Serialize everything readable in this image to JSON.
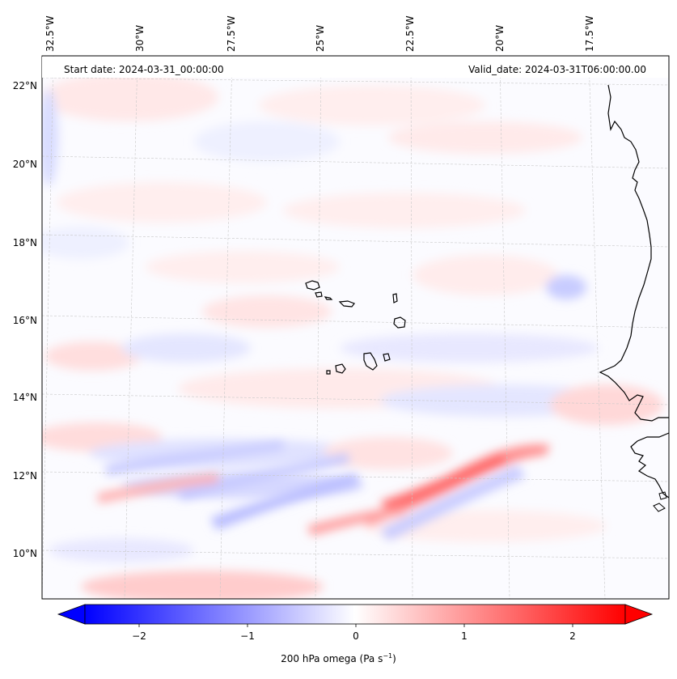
{
  "map": {
    "start_date_label": "Start date: 2024-03-31_00:00:00",
    "valid_date_label": "Valid_date: 2024-03-31T06:00:00.00",
    "lon_labels": [
      "32.5°W",
      "30°W",
      "27.5°W",
      "25°W",
      "22.5°W",
      "20°W",
      "17.5°W"
    ],
    "lat_labels": [
      "22°N",
      "20°N",
      "18°N",
      "16°N",
      "14°N",
      "12°N",
      "10°N"
    ]
  },
  "colorbar": {
    "ticks": [
      "−2",
      "−1",
      "0",
      "1",
      "2"
    ],
    "title_main": "200 hPa omega (Pa s",
    "title_exp": "−1",
    "title_close": ")",
    "colors": {
      "negative": "#0000ff",
      "zero": "#ffffff",
      "positive": "#ff0000"
    }
  }
}
